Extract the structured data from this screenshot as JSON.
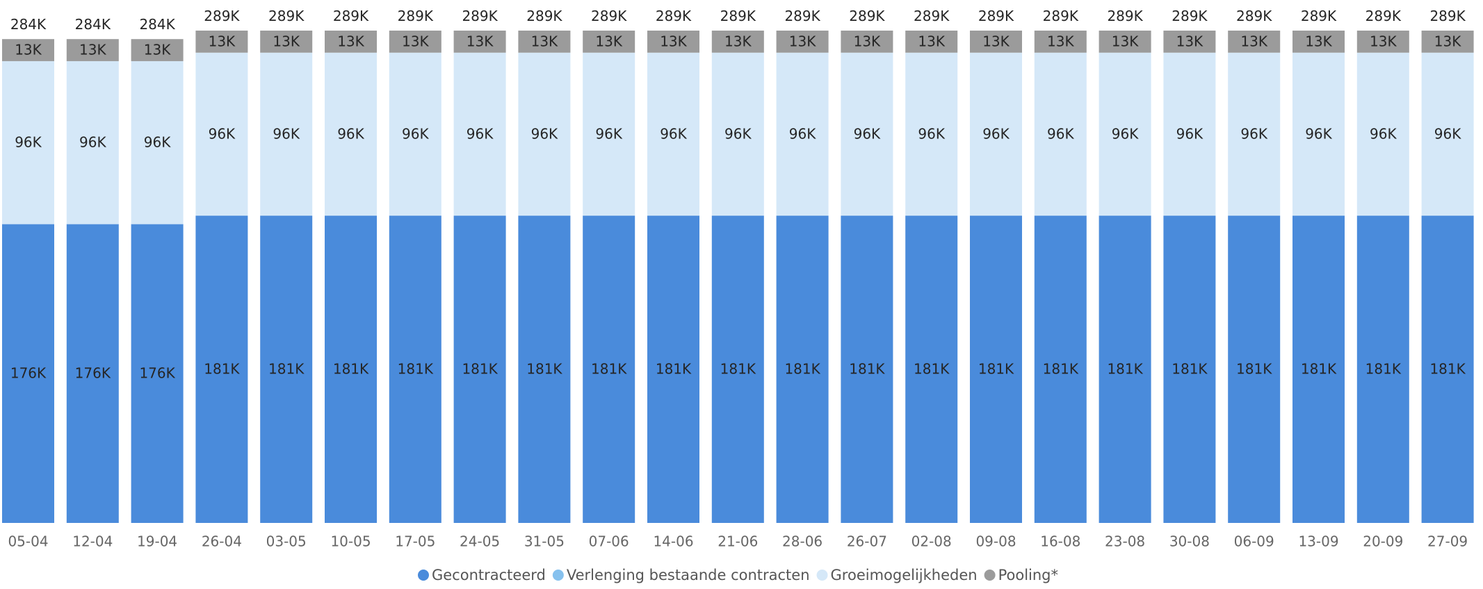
{
  "chart_data": {
    "type": "stacked_bar",
    "categories": [
      "05-04",
      "12-04",
      "19-04",
      "26-04",
      "03-05",
      "10-05",
      "17-05",
      "24-05",
      "31-05",
      "07-06",
      "14-06",
      "21-06",
      "28-06",
      "26-07",
      "02-08",
      "09-08",
      "16-08",
      "23-08",
      "30-08",
      "06-09",
      "13-09",
      "20-09",
      "27-09"
    ],
    "series": [
      {
        "name": "Gecontracteerd",
        "color": "#4a8bdb",
        "values": [
          176000,
          176000,
          176000,
          181000,
          181000,
          181000,
          181000,
          181000,
          181000,
          181000,
          181000,
          181000,
          181000,
          181000,
          181000,
          181000,
          181000,
          181000,
          181000,
          181000,
          181000,
          181000,
          181000
        ],
        "value_labels": [
          "176K",
          "176K",
          "176K",
          "181K",
          "181K",
          "181K",
          "181K",
          "181K",
          "181K",
          "181K",
          "181K",
          "181K",
          "181K",
          "181K",
          "181K",
          "181K",
          "181K",
          "181K",
          "181K",
          "181K",
          "181K",
          "181K",
          "181K"
        ]
      },
      {
        "name": "Verlenging bestaande contracten",
        "color": "#86c1ee",
        "values": [
          0,
          0,
          0,
          0,
          0,
          0,
          0,
          0,
          0,
          0,
          0,
          0,
          0,
          0,
          0,
          0,
          0,
          0,
          0,
          0,
          0,
          0,
          0
        ]
      },
      {
        "name": "Groeimogelijkheden",
        "color": "#d5e8f8",
        "values": [
          96000,
          96000,
          96000,
          96000,
          96000,
          96000,
          96000,
          96000,
          96000,
          96000,
          96000,
          96000,
          96000,
          96000,
          96000,
          96000,
          96000,
          96000,
          96000,
          96000,
          96000,
          96000,
          96000
        ],
        "value_labels": [
          "96K",
          "96K",
          "96K",
          "96K",
          "96K",
          "96K",
          "96K",
          "96K",
          "96K",
          "96K",
          "96K",
          "96K",
          "96K",
          "96K",
          "96K",
          "96K",
          "96K",
          "96K",
          "96K",
          "96K",
          "96K",
          "96K",
          "96K"
        ]
      },
      {
        "name": "Pooling*",
        "color": "#9b9b9b",
        "values": [
          13000,
          13000,
          13000,
          13000,
          13000,
          13000,
          13000,
          13000,
          13000,
          13000,
          13000,
          13000,
          13000,
          13000,
          13000,
          13000,
          13000,
          13000,
          13000,
          13000,
          13000,
          13000,
          13000
        ],
        "value_labels": [
          "13K",
          "13K",
          "13K",
          "13K",
          "13K",
          "13K",
          "13K",
          "13K",
          "13K",
          "13K",
          "13K",
          "13K",
          "13K",
          "13K",
          "13K",
          "13K",
          "13K",
          "13K",
          "13K",
          "13K",
          "13K",
          "13K",
          "13K"
        ]
      }
    ],
    "totals": [
      284000,
      284000,
      284000,
      289000,
      289000,
      289000,
      289000,
      289000,
      289000,
      289000,
      289000,
      289000,
      289000,
      289000,
      289000,
      289000,
      289000,
      289000,
      289000,
      289000,
      289000,
      289000,
      289000
    ],
    "total_labels": [
      "284K",
      "284K",
      "284K",
      "289K",
      "289K",
      "289K",
      "289K",
      "289K",
      "289K",
      "289K",
      "289K",
      "289K",
      "289K",
      "289K",
      "289K",
      "289K",
      "289K",
      "289K",
      "289K",
      "289K",
      "289K",
      "289K",
      "289K"
    ],
    "legend": "bottom"
  }
}
